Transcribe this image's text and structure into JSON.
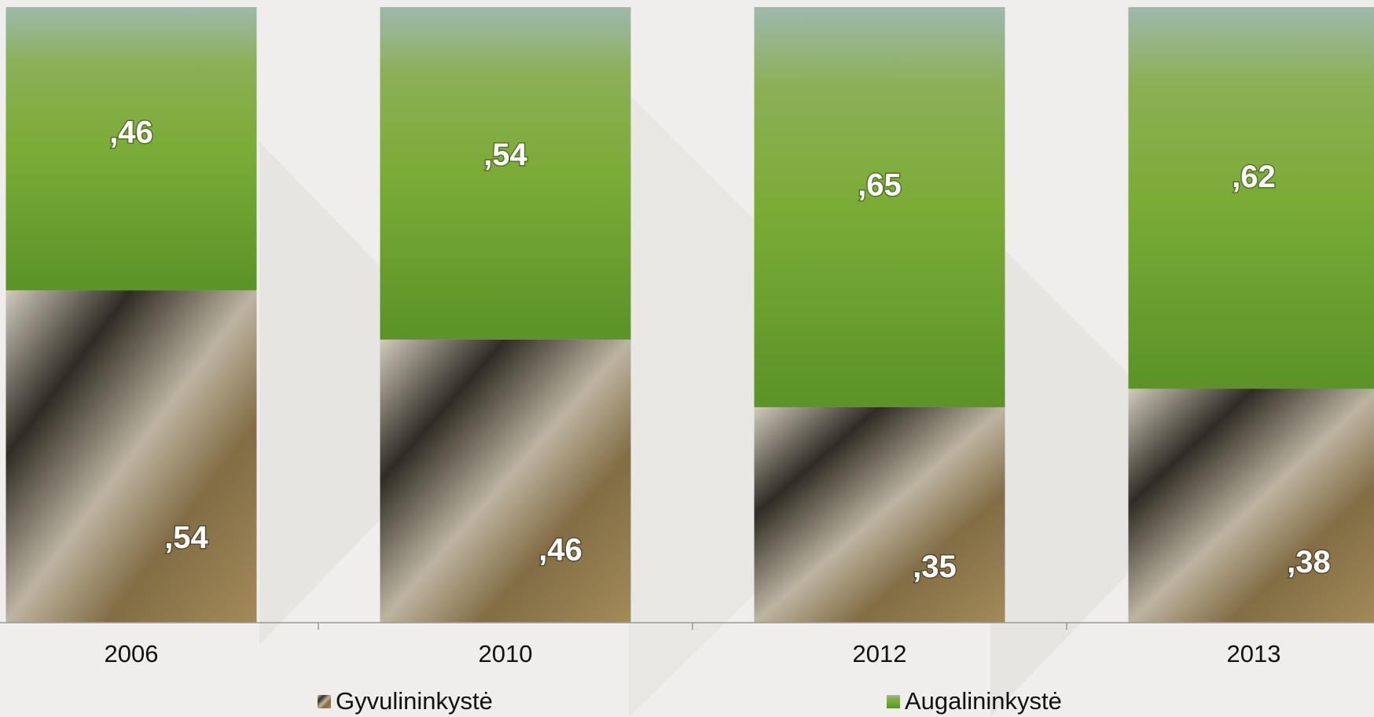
{
  "chart_data": {
    "type": "stacked-bar",
    "categories": [
      "2006",
      "2010",
      "2012",
      "2013"
    ],
    "series": [
      {
        "name": "Gyvulininkystė",
        "color": "#6b5a3a",
        "values": [
          0.54,
          0.46,
          0.35,
          0.38
        ],
        "value_labels": [
          ",54",
          ",46",
          ",35",
          ",38"
        ]
      },
      {
        "name": "Augalininkystė",
        "color": "#7fae3a",
        "values": [
          0.46,
          0.54,
          0.65,
          0.62
        ],
        "value_labels": [
          ",46",
          ",54",
          ",65",
          ",62"
        ]
      }
    ]
  }
}
